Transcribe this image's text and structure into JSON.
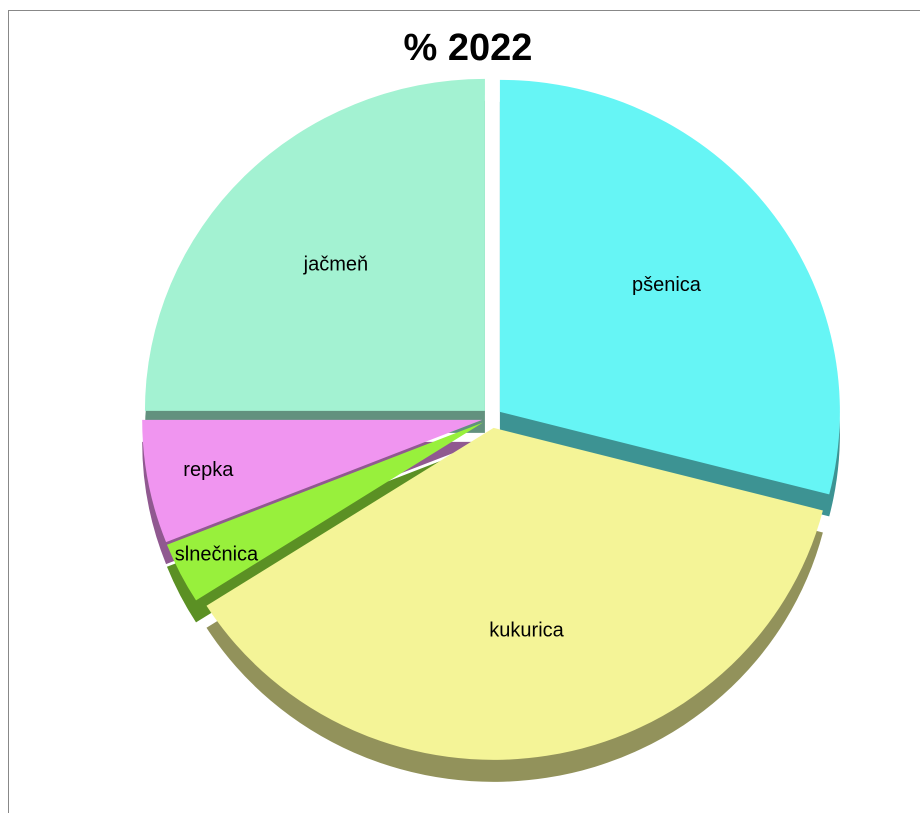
{
  "chart_data": {
    "type": "pie",
    "title": "% 2022",
    "categories": [
      "pšenica",
      "kukurica",
      "slnečnica",
      "repka",
      "jačmeň"
    ],
    "values": [
      29,
      37,
      3,
      6,
      25
    ],
    "colors": [
      "#66f5f5",
      "#f4f497",
      "#98f03c",
      "#f095f0",
      "#a3f2d2"
    ]
  }
}
